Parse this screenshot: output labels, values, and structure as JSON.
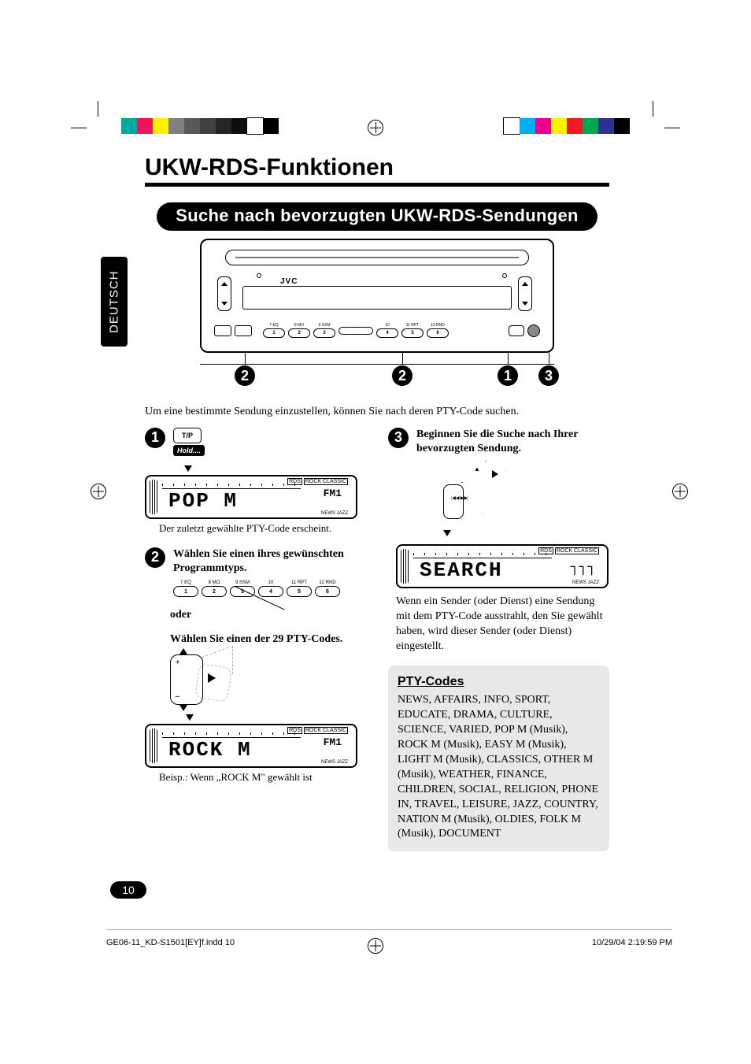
{
  "crop_colors_left": [
    "#00a99d",
    "#ed145b",
    "#fff200",
    "#808080",
    "#595959",
    "#404040",
    "#262626",
    "#0d0d0d",
    "#ffffff",
    "#000000"
  ],
  "crop_colors_right": [
    "#ffffff",
    "#00aeef",
    "#ec008c",
    "#fff200",
    "#ed1c24",
    "#00a651",
    "#2e3192",
    "#000000"
  ],
  "h1": "UKW-RDS-Funktionen",
  "section_title": "Suche nach bevorzugten UKW-RDS-Sendungen",
  "jvc": "JVC",
  "num_labels": [
    "7 EQ",
    "8 MO",
    "9 SSM",
    "10",
    "11 RPT",
    "12 RND"
  ],
  "num_digits": [
    "1",
    "2",
    "3",
    "4",
    "5",
    "6"
  ],
  "circ_positions": {
    "c2a": 44,
    "c2b": 244,
    "c1": 378,
    "c3": 430
  },
  "circ_labels": {
    "one": "1",
    "two": "2",
    "three": "3"
  },
  "intro": "Um eine bestimmte Sendung einzustellen, können Sie nach deren PTY-Code suchen.",
  "steps": {
    "s1": {
      "tp": "T/P",
      "hold": "Hold....",
      "display": "POP  M",
      "fm": "FM1",
      "dp_corner": [
        "RDS",
        "ROCK CLASSIC"
      ],
      "dp_corner2": "NEWS  JAZZ",
      "caption": "Der zuletzt gewählte PTY-Code erscheint."
    },
    "s2": {
      "title": "Wählen Sie einen ihres gewünschten Programmtyps.",
      "oder": "oder",
      "title2": "Wählen Sie einen der 29 PTY-Codes.",
      "display": "ROCK  M",
      "fm": "FM1",
      "caption": "Beisp.: Wenn „ROCK M\" gewählt ist"
    },
    "s3": {
      "title": "Beginnen Sie die Suche nach Ihrer bevorzugten Sendung.",
      "display": "SEARCH",
      "note": "Wenn ein Sender (oder Dienst) eine Sendung mit dem PTY-Code ausstrahlt, den Sie gewählt haben, wird dieser Sender (oder Dienst) eingestellt."
    }
  },
  "pty": {
    "title": "PTY-Codes",
    "body": "NEWS, AFFAIRS, INFO, SPORT, EDUCATE, DRAMA, CULTURE, SCIENCE, VARIED, POP M (Musik), ROCK M (Musik), EASY M (Musik), LIGHT M (Musik), CLASSICS, OTHER M (Musik), WEATHER, FINANCE, CHILDREN, SOCIAL, RELIGION, PHONE IN, TRAVEL, LEISURE, JAZZ, COUNTRY, NATION M (Musik), OLDIES, FOLK M (Musik), DOCUMENT"
  },
  "lang": "DEUTSCH",
  "page_num": "10",
  "footer_left": "GE06-11_KD-S1501[EY]f.indd   10",
  "footer_right": "10/29/04   2:19:59 PM"
}
